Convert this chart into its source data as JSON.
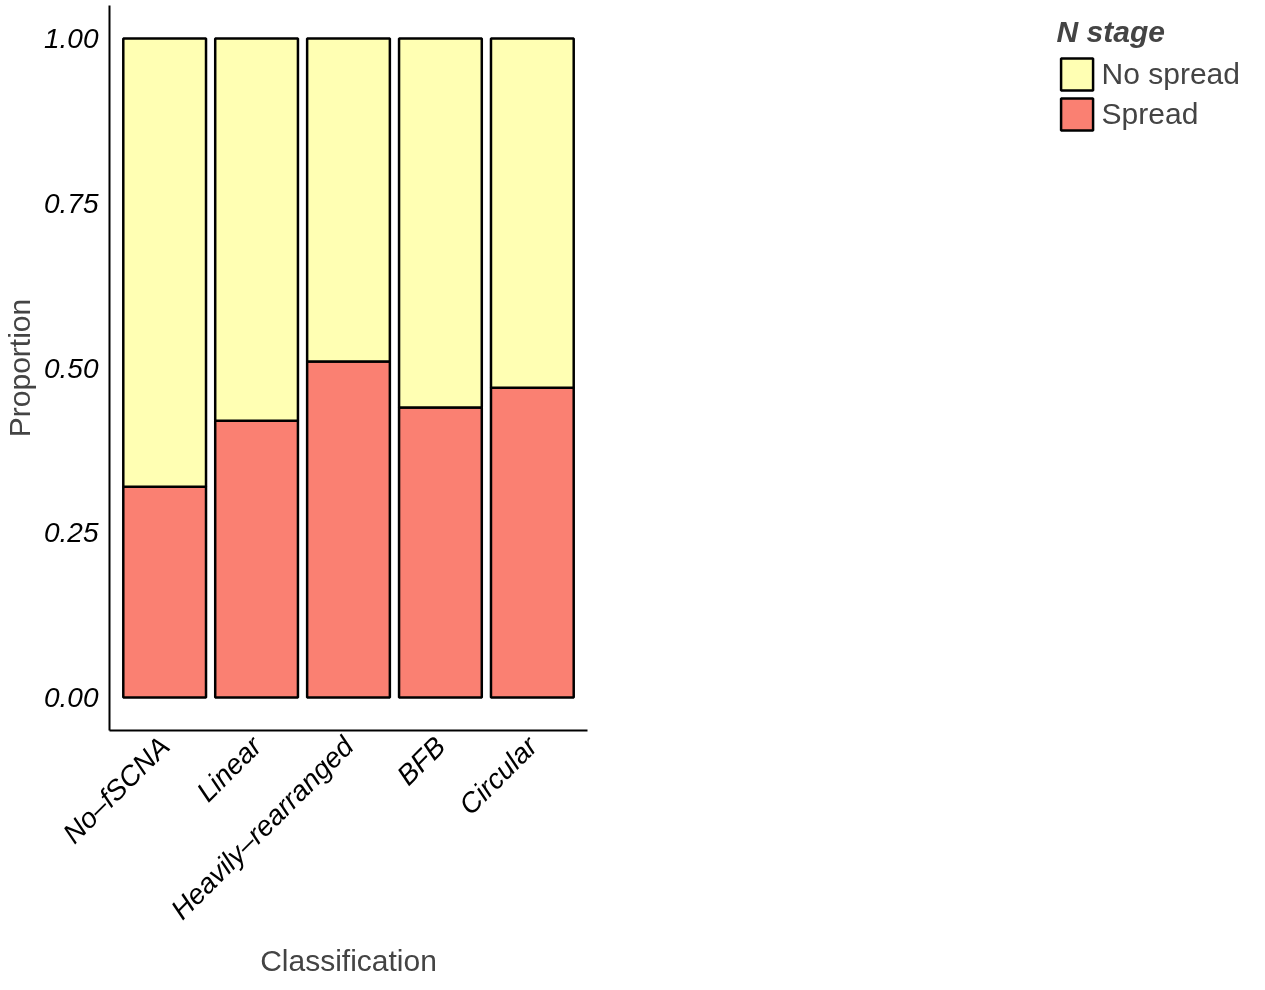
{
  "chart_data": {
    "type": "bar",
    "stacked": true,
    "xlabel": "Classification",
    "ylabel": "Proportion",
    "legend_title": "N stage",
    "legend": "right",
    "categories": [
      "No–fSCNA",
      "Linear",
      "Heavily–rearranged",
      "BFB",
      "Circular"
    ],
    "series": [
      {
        "name": "Spread",
        "color": "#fa8072",
        "values": [
          0.32,
          0.42,
          0.51,
          0.44,
          0.47
        ]
      },
      {
        "name": "No spread",
        "color": "#ffffb3",
        "values": [
          0.68,
          0.58,
          0.49,
          0.56,
          0.53
        ]
      }
    ],
    "ylim": [
      -0.05,
      1.05
    ],
    "yticks": [
      {
        "value": 0,
        "label": "0.00"
      },
      {
        "value": 0.25,
        "label": "0.25"
      },
      {
        "value": 0.5,
        "label": "0.50"
      },
      {
        "value": 0.75,
        "label": "0.75"
      },
      {
        "value": 1,
        "label": "1.00"
      }
    ],
    "grid": false
  }
}
